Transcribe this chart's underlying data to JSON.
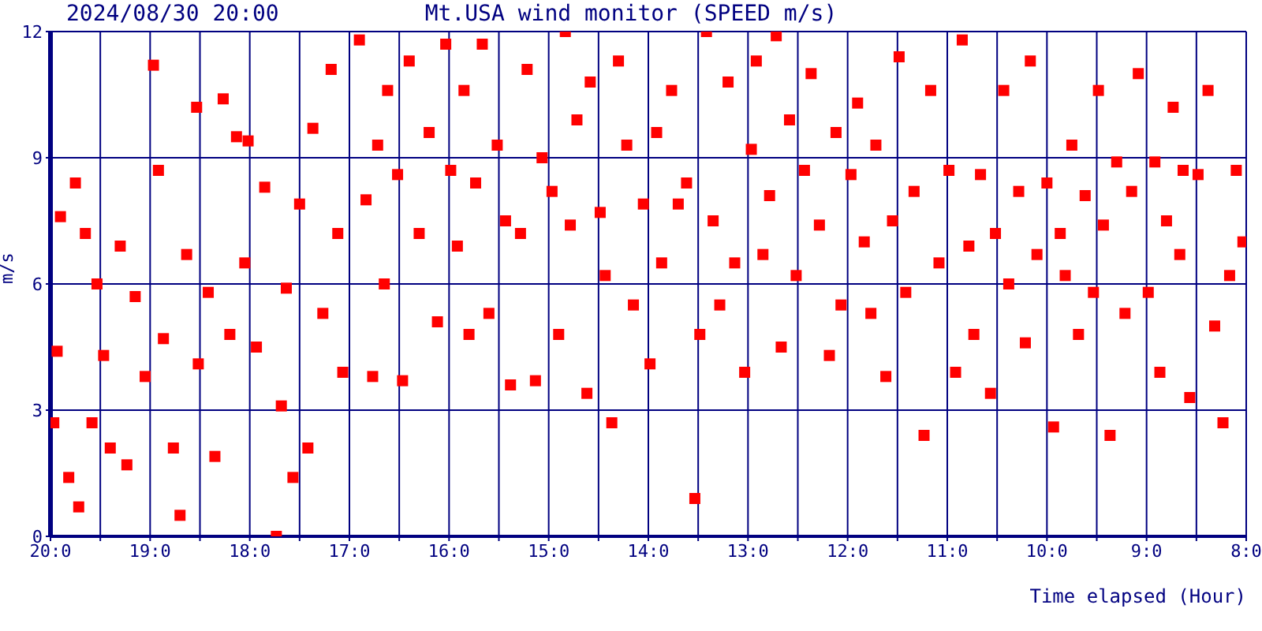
{
  "chart_data": {
    "type": "scatter",
    "title": "Mt.USA wind monitor (SPEED m/s)",
    "annotations": [
      "2024/08/30 20:00"
    ],
    "xlabel": "Time elapsed (Hour)",
    "ylabel": "m/s",
    "xlim": [
      "2024-08-30T20:00",
      "2024-08-30T08:00"
    ],
    "ylim": [
      0,
      12
    ],
    "yticks": [
      0,
      3,
      6,
      9,
      12
    ],
    "xticks": [
      {
        "value": "2024-08-30T20:00",
        "label": "20:0"
      },
      {
        "value": "2024-08-30T19:30",
        "label": null
      },
      {
        "value": "2024-08-30T19:00",
        "label": "19:0"
      },
      {
        "value": "2024-08-30T18:30",
        "label": null
      },
      {
        "value": "2024-08-30T18:00",
        "label": "18:0"
      },
      {
        "value": "2024-08-30T17:30",
        "label": null
      },
      {
        "value": "2024-08-30T17:00",
        "label": "17:0"
      },
      {
        "value": "2024-08-30T16:30",
        "label": null
      },
      {
        "value": "2024-08-30T16:00",
        "label": "16:0"
      },
      {
        "value": "2024-08-30T15:30",
        "label": null
      },
      {
        "value": "2024-08-30T15:00",
        "label": "15:0"
      },
      {
        "value": "2024-08-30T14:30",
        "label": null
      },
      {
        "value": "2024-08-30T14:00",
        "label": "14:0"
      },
      {
        "value": "2024-08-30T13:30",
        "label": null
      },
      {
        "value": "2024-08-30T13:00",
        "label": "13:0"
      },
      {
        "value": "2024-08-30T12:30",
        "label": null
      },
      {
        "value": "2024-08-30T12:00",
        "label": "12:0"
      },
      {
        "value": "2024-08-30T11:30",
        "label": null
      },
      {
        "value": "2024-08-30T11:00",
        "label": "11:0"
      },
      {
        "value": "2024-08-30T10:30",
        "label": null
      },
      {
        "value": "2024-08-30T10:00",
        "label": "10:0"
      },
      {
        "value": "2024-08-30T09:30",
        "label": null
      },
      {
        "value": "2024-08-30T09:00",
        "label": "9:0"
      },
      {
        "value": "2024-08-30T08:30",
        "label": null
      },
      {
        "value": "2024-08-30T08:00",
        "label": "8:0"
      }
    ],
    "grid": true,
    "marker": "square",
    "legend": false,
    "series": [
      {
        "color": "#ff0000",
        "x": [
          "2024-08-30T19:58",
          "2024-08-30T19:56",
          "2024-08-30T19:54",
          "2024-08-30T19:49",
          "2024-08-30T19:45",
          "2024-08-30T19:43",
          "2024-08-30T19:39",
          "2024-08-30T19:35",
          "2024-08-30T19:32",
          "2024-08-30T19:28",
          "2024-08-30T19:24",
          "2024-08-30T19:18",
          "2024-08-30T19:14",
          "2024-08-30T19:09",
          "2024-08-30T19:03",
          "2024-08-30T18:58",
          "2024-08-30T18:55",
          "2024-08-30T18:52",
          "2024-08-30T18:46",
          "2024-08-30T18:42",
          "2024-08-30T18:38",
          "2024-08-30T18:32",
          "2024-08-30T18:31",
          "2024-08-30T18:25",
          "2024-08-30T18:21",
          "2024-08-30T18:16",
          "2024-08-30T18:12",
          "2024-08-30T18:08",
          "2024-08-30T18:03",
          "2024-08-30T18:01",
          "2024-08-30T17:56",
          "2024-08-30T17:51",
          "2024-08-30T17:44",
          "2024-08-30T17:41",
          "2024-08-30T17:38",
          "2024-08-30T17:34",
          "2024-08-30T17:30",
          "2024-08-30T17:25",
          "2024-08-30T17:22",
          "2024-08-30T17:16",
          "2024-08-30T17:11",
          "2024-08-30T17:07",
          "2024-08-30T17:04",
          "2024-08-30T16:54",
          "2024-08-30T16:50",
          "2024-08-30T16:46",
          "2024-08-30T16:43",
          "2024-08-30T16:39",
          "2024-08-30T16:37",
          "2024-08-30T16:31",
          "2024-08-30T16:28",
          "2024-08-30T16:24",
          "2024-08-30T16:18",
          "2024-08-30T16:12",
          "2024-08-30T16:07",
          "2024-08-30T16:02",
          "2024-08-30T15:59",
          "2024-08-30T15:55",
          "2024-08-30T15:51",
          "2024-08-30T15:48",
          "2024-08-30T15:44",
          "2024-08-30T15:40",
          "2024-08-30T15:36",
          "2024-08-30T15:31",
          "2024-08-30T15:26",
          "2024-08-30T15:23",
          "2024-08-30T15:17",
          "2024-08-30T15:13",
          "2024-08-30T15:08",
          "2024-08-30T15:04",
          "2024-08-30T14:58",
          "2024-08-30T14:54",
          "2024-08-30T14:50",
          "2024-08-30T14:47",
          "2024-08-30T14:43",
          "2024-08-30T14:37",
          "2024-08-30T14:35",
          "2024-08-30T14:29",
          "2024-08-30T14:26",
          "2024-08-30T14:22",
          "2024-08-30T14:18",
          "2024-08-30T14:13",
          "2024-08-30T14:09",
          "2024-08-30T14:03",
          "2024-08-30T13:59",
          "2024-08-30T13:55",
          "2024-08-30T13:52",
          "2024-08-30T13:46",
          "2024-08-30T13:42",
          "2024-08-30T13:37",
          "2024-08-30T13:32",
          "2024-08-30T13:29",
          "2024-08-30T13:25",
          "2024-08-30T13:21",
          "2024-08-30T13:17",
          "2024-08-30T13:12",
          "2024-08-30T13:08",
          "2024-08-30T13:02",
          "2024-08-30T12:58",
          "2024-08-30T12:55",
          "2024-08-30T12:51",
          "2024-08-30T12:47",
          "2024-08-30T12:43",
          "2024-08-30T12:40",
          "2024-08-30T12:35",
          "2024-08-30T12:31",
          "2024-08-30T12:26",
          "2024-08-30T12:22",
          "2024-08-30T12:17",
          "2024-08-30T12:11",
          "2024-08-30T12:07",
          "2024-08-30T12:04",
          "2024-08-30T11:58",
          "2024-08-30T11:54",
          "2024-08-30T11:50",
          "2024-08-30T11:46",
          "2024-08-30T11:43",
          "2024-08-30T11:37",
          "2024-08-30T11:33",
          "2024-08-30T11:29",
          "2024-08-30T11:25",
          "2024-08-30T11:20",
          "2024-08-30T11:14",
          "2024-08-30T11:10",
          "2024-08-30T11:05",
          "2024-08-30T10:59",
          "2024-08-30T10:55",
          "2024-08-30T10:51",
          "2024-08-30T10:47",
          "2024-08-30T10:44",
          "2024-08-30T10:40",
          "2024-08-30T10:34",
          "2024-08-30T10:31",
          "2024-08-30T10:26",
          "2024-08-30T10:23",
          "2024-08-30T10:17",
          "2024-08-30T10:13",
          "2024-08-30T10:10",
          "2024-08-30T10:06",
          "2024-08-30T10:00",
          "2024-08-30T09:56",
          "2024-08-30T09:52",
          "2024-08-30T09:49",
          "2024-08-30T09:45",
          "2024-08-30T09:41",
          "2024-08-30T09:37",
          "2024-08-30T09:32",
          "2024-08-30T09:29",
          "2024-08-30T09:26",
          "2024-08-30T09:22",
          "2024-08-30T09:18",
          "2024-08-30T09:13",
          "2024-08-30T09:09",
          "2024-08-30T09:05",
          "2024-08-30T08:59",
          "2024-08-30T08:55",
          "2024-08-30T08:52",
          "2024-08-30T08:48",
          "2024-08-30T08:44",
          "2024-08-30T08:40",
          "2024-08-30T08:38",
          "2024-08-30T08:34",
          "2024-08-30T08:29",
          "2024-08-30T08:23",
          "2024-08-30T08:19",
          "2024-08-30T08:14",
          "2024-08-30T08:10",
          "2024-08-30T08:06",
          "2024-08-30T08:02"
        ],
        "values": [
          2.7,
          4.4,
          7.6,
          1.4,
          8.4,
          0.7,
          7.2,
          2.7,
          6.0,
          4.3,
          2.1,
          6.9,
          1.7,
          5.7,
          3.8,
          11.2,
          8.7,
          4.7,
          2.1,
          0.5,
          6.7,
          10.2,
          4.1,
          5.8,
          1.9,
          10.4,
          4.8,
          9.5,
          6.5,
          9.4,
          4.5,
          8.3,
          0.0,
          3.1,
          5.9,
          1.4,
          7.9,
          2.1,
          9.7,
          5.3,
          11.1,
          7.2,
          3.9,
          11.8,
          8.0,
          3.8,
          9.3,
          6.0,
          10.6,
          8.6,
          3.7,
          11.3,
          7.2,
          9.6,
          5.1,
          11.7,
          8.7,
          6.9,
          10.6,
          4.8,
          8.4,
          11.7,
          5.3,
          9.3,
          7.5,
          3.6,
          7.2,
          11.1,
          3.7,
          9.0,
          8.2,
          4.8,
          12.0,
          7.4,
          9.9,
          3.4,
          10.8,
          7.7,
          6.2,
          2.7,
          11.3,
          9.3,
          5.5,
          7.9,
          4.1,
          9.6,
          6.5,
          10.6,
          7.9,
          8.4,
          0.9,
          4.8,
          12.0,
          7.5,
          5.5,
          10.8,
          6.5,
          3.9,
          9.2,
          11.3,
          6.7,
          8.1,
          11.9,
          4.5,
          9.9,
          6.2,
          8.7,
          11.0,
          7.4,
          4.3,
          9.6,
          5.5,
          8.6,
          10.3,
          7.0,
          5.3,
          9.3,
          3.8,
          7.5,
          11.4,
          5.8,
          8.2,
          2.4,
          10.6,
          6.5,
          8.7,
          3.9,
          11.8,
          6.9,
          4.8,
          8.6,
          3.4,
          7.2,
          10.6,
          6.0,
          8.2,
          4.6,
          11.3,
          6.7,
          8.4,
          2.6,
          7.2,
          6.2,
          9.3,
          4.8,
          8.1,
          5.8,
          10.6,
          7.4,
          2.4,
          8.9,
          5.3,
          8.2,
          11.0,
          5.8,
          8.9,
          3.9,
          7.5,
          10.2,
          6.7,
          8.7,
          3.3,
          8.6,
          10.6,
          5.0,
          2.7,
          6.2,
          8.7,
          7.0
        ]
      }
    ]
  }
}
